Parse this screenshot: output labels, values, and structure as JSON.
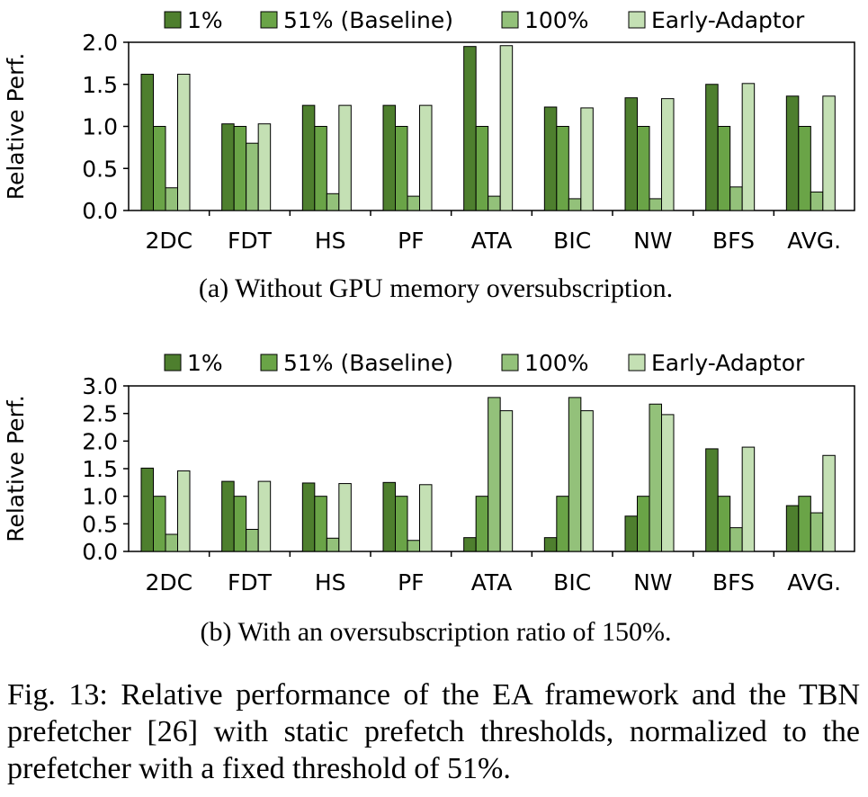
{
  "legend": [
    "1%",
    "51% (Baseline)",
    "100%",
    "Early-Adaptor"
  ],
  "colors": {
    "series": [
      "#4e7f2e",
      "#6aa447",
      "#93c17a",
      "#c4e0b4"
    ],
    "outline": "#000000"
  },
  "chart_data": [
    {
      "type": "bar",
      "caption": "(a) Without GPU memory oversubscription.",
      "ylabel": "Relative Perf.",
      "xlabel": "",
      "categories": [
        "2DC",
        "FDT",
        "HS",
        "PF",
        "ATA",
        "BIC",
        "NW",
        "BFS",
        "AVG."
      ],
      "ylim": [
        0,
        2.0
      ],
      "yticks": [
        "0.0",
        "0.5",
        "1.0",
        "1.5",
        "2.0"
      ],
      "grid": false,
      "legend_position": "top",
      "series": [
        {
          "name": "1%",
          "values": [
            1.62,
            1.03,
            1.25,
            1.25,
            1.95,
            1.23,
            1.34,
            1.5,
            1.36
          ]
        },
        {
          "name": "51% (Baseline)",
          "values": [
            1.0,
            1.0,
            1.0,
            1.0,
            1.0,
            1.0,
            1.0,
            1.0,
            1.0
          ]
        },
        {
          "name": "100%",
          "values": [
            0.27,
            0.8,
            0.2,
            0.17,
            0.17,
            0.14,
            0.14,
            0.28,
            0.22
          ]
        },
        {
          "name": "Early-Adaptor",
          "values": [
            1.62,
            1.03,
            1.25,
            1.25,
            1.96,
            1.22,
            1.33,
            1.51,
            1.36
          ]
        }
      ]
    },
    {
      "type": "bar",
      "caption": "(b) With an oversubscription ratio of 150%.",
      "ylabel": "Relative Perf.",
      "xlabel": "",
      "categories": [
        "2DC",
        "FDT",
        "HS",
        "PF",
        "ATA",
        "BIC",
        "NW",
        "BFS",
        "AVG."
      ],
      "ylim": [
        0,
        3.0
      ],
      "yticks": [
        "0.0",
        "0.5",
        "1.0",
        "1.5",
        "2.0",
        "2.5",
        "3.0"
      ],
      "grid": false,
      "legend_position": "top",
      "series": [
        {
          "name": "1%",
          "values": [
            1.51,
            1.27,
            1.24,
            1.25,
            0.25,
            0.25,
            0.64,
            1.86,
            0.83
          ]
        },
        {
          "name": "51% (Baseline)",
          "values": [
            1.0,
            1.0,
            1.0,
            1.0,
            1.0,
            1.0,
            1.0,
            1.0,
            1.0
          ]
        },
        {
          "name": "100%",
          "values": [
            0.31,
            0.4,
            0.24,
            0.2,
            2.79,
            2.79,
            2.67,
            0.43,
            0.7
          ]
        },
        {
          "name": "Early-Adaptor",
          "values": [
            1.46,
            1.27,
            1.23,
            1.21,
            2.55,
            2.55,
            2.48,
            1.89,
            1.74
          ]
        }
      ]
    }
  ],
  "figure_caption": "Fig. 13: Relative performance of the EA framework and the TBN prefetcher [26] with static prefetch thresholds, normalized to the prefetcher with a fixed threshold of 51%."
}
